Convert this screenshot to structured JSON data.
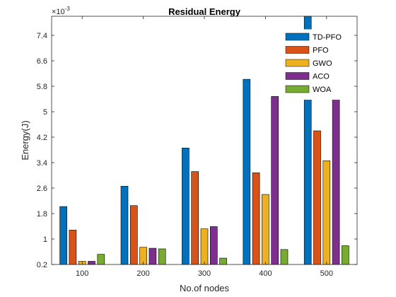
{
  "chart_data": {
    "type": "bar",
    "title": "Residual Energy",
    "xlabel": "No.of nodes",
    "ylabel": "Energy(J)",
    "y_exponent_label": "×10",
    "y_exponent_power": "-3",
    "categories": [
      "100",
      "200",
      "300",
      "400",
      "500"
    ],
    "ylim": [
      0.2,
      8.0
    ],
    "yticks": [
      "0.2",
      "1",
      "1.8",
      "2.6",
      "3.4",
      "4.2",
      "5",
      "5.8",
      "6.6",
      "7.4"
    ],
    "ytick_values": [
      0.2,
      1.0,
      1.8,
      2.6,
      3.4,
      4.2,
      5.0,
      5.8,
      6.6,
      7.4
    ],
    "legend_position": "top-right",
    "grid": false,
    "series": [
      {
        "name": "TD-PFO",
        "color": "#0072BD",
        "values": [
          2.02,
          2.66,
          3.86,
          6.02,
          8.0
        ]
      },
      {
        "name": "PFO",
        "color": "#D95319",
        "values": [
          1.28,
          2.05,
          3.12,
          3.08,
          4.4
        ]
      },
      {
        "name": "GWO",
        "color": "#EDB120",
        "values": [
          0.3,
          0.74,
          1.32,
          2.4,
          3.46
        ]
      },
      {
        "name": "ACO",
        "color": "#7E2F8E",
        "values": [
          0.3,
          0.71,
          1.39,
          5.48,
          5.44
        ]
      },
      {
        "name": "WOA",
        "color": "#77AC30",
        "values": [
          0.52,
          0.69,
          0.4,
          0.67,
          0.79
        ]
      }
    ]
  }
}
